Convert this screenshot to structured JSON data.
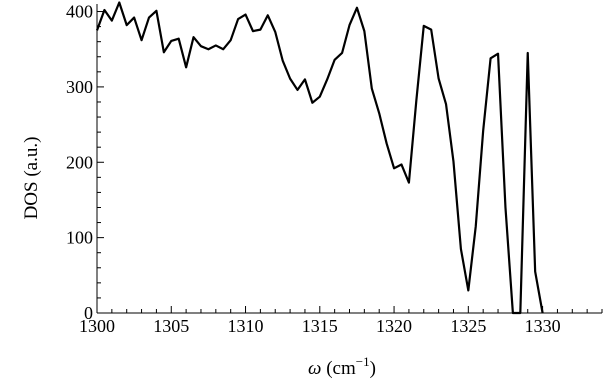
{
  "chart_data": {
    "type": "line",
    "title": "",
    "xlabel_symbol": "ω",
    "xlabel_unit_pre": " (cm",
    "xlabel_unit_sup": "−1",
    "xlabel_unit_post": ")",
    "ylabel": "DOS (a.u.)",
    "xlim": [
      1300,
      1334
    ],
    "ylim": [
      0,
      410
    ],
    "xticks": [
      1300,
      1305,
      1310,
      1315,
      1320,
      1325,
      1330
    ],
    "yticks": [
      0,
      100,
      200,
      300,
      400
    ],
    "grid": false,
    "line_color": "#000000",
    "series": [
      {
        "x": [
          1300.0,
          1300.5,
          1301.0,
          1301.5,
          1302.0,
          1302.5,
          1303.0,
          1303.5,
          1304.0,
          1304.5,
          1305.0,
          1305.5,
          1306.0,
          1306.5,
          1307.0,
          1307.5,
          1308.0,
          1308.5,
          1309.0,
          1309.5,
          1310.0,
          1310.5,
          1311.0,
          1311.5,
          1312.0,
          1312.5,
          1313.0,
          1313.5,
          1314.0,
          1314.5,
          1315.0,
          1315.5,
          1316.0,
          1316.5,
          1317.0,
          1317.5,
          1318.0,
          1318.5,
          1319.0,
          1319.5,
          1320.0,
          1320.5,
          1321.0,
          1321.5,
          1322.0,
          1322.5,
          1323.0,
          1323.5,
          1324.0,
          1324.5,
          1325.0,
          1325.5,
          1326.0,
          1326.5,
          1327.0,
          1327.5,
          1328.0,
          1328.5,
          1329.0,
          1329.5,
          1330.0
        ],
        "y": [
          375,
          402,
          388,
          412,
          382,
          392,
          362,
          392,
          401,
          346,
          361,
          364,
          326,
          366,
          354,
          350,
          355,
          350,
          362,
          390,
          396,
          374,
          376,
          395,
          373,
          335,
          311,
          296,
          310,
          279,
          287,
          310,
          336,
          345,
          382,
          405,
          374,
          298,
          265,
          225,
          192,
          197,
          173,
          282,
          381,
          376,
          311,
          277,
          201,
          85,
          30,
          115,
          242,
          338,
          344,
          140,
          0,
          0,
          345,
          55,
          0
        ]
      }
    ]
  }
}
